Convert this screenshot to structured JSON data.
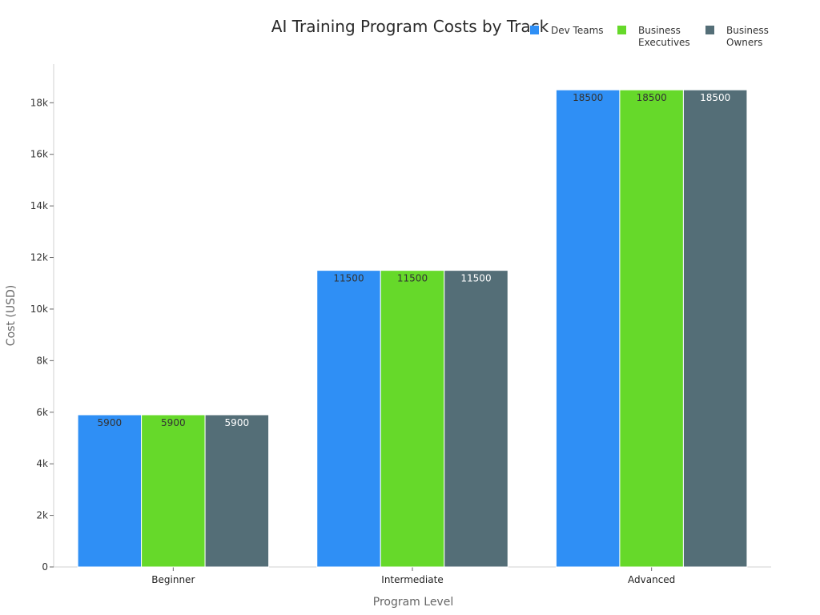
{
  "chart_data": {
    "type": "bar",
    "title": "AI Training Program Costs by Track",
    "xlabel": "Program Level",
    "ylabel": "Cost (USD)",
    "categories": [
      "Beginner",
      "Intermediate",
      "Advanced"
    ],
    "series": [
      {
        "name": "Dev Teams",
        "values": [
          5900,
          11500,
          18500
        ],
        "color": "#2f8ff5",
        "label_color": "#333333"
      },
      {
        "name": "Business Executives",
        "values": [
          5900,
          11500,
          18500
        ],
        "color": "#66d92a",
        "label_color": "#333333"
      },
      {
        "name": "Business Owners",
        "values": [
          5900,
          11500,
          18500
        ],
        "color": "#546e77",
        "label_color": "#ffffff"
      }
    ],
    "ylim": [
      0,
      19500
    ],
    "yticks": [
      0,
      2000,
      4000,
      6000,
      8000,
      10000,
      12000,
      14000,
      16000,
      18000
    ],
    "ytick_labels": [
      "0",
      "2k",
      "4k",
      "6k",
      "8k",
      "10k",
      "12k",
      "14k",
      "16k",
      "18k"
    ],
    "legend": {
      "position": "top-right",
      "lines": [
        [
          "Dev Teams"
        ],
        [
          "Business",
          "Executives"
        ],
        [
          "Business",
          "Owners"
        ]
      ]
    },
    "grid": false
  }
}
